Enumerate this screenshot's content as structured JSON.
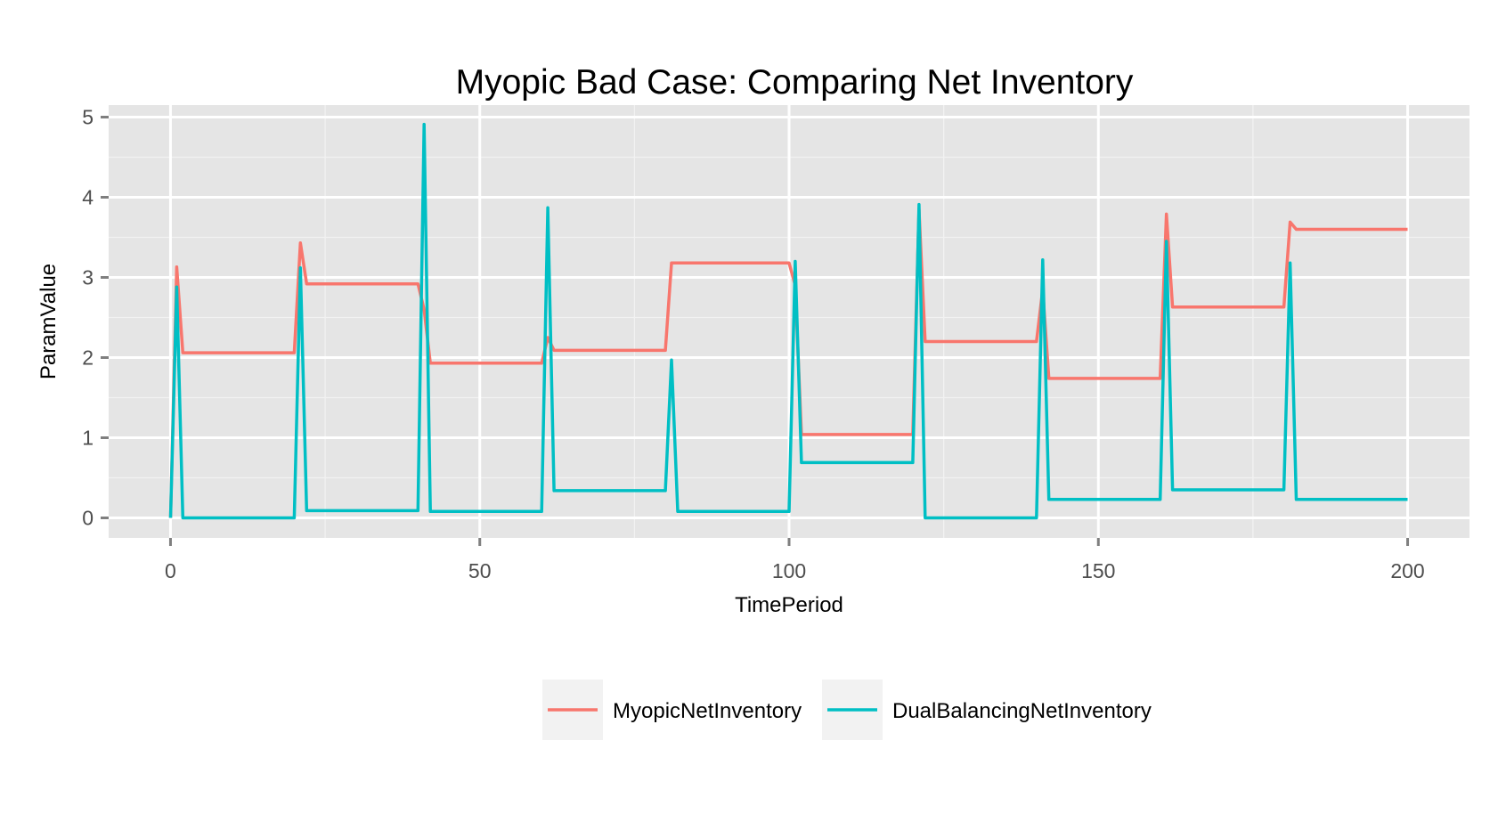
{
  "chart_data": {
    "type": "line",
    "title": "Myopic Bad Case: Comparing Net Inventory",
    "xlabel": "TimePeriod",
    "ylabel": "ParamValue",
    "xlim": [
      -10,
      210
    ],
    "ylim": [
      -0.25,
      5.15
    ],
    "xticks": [
      0,
      50,
      100,
      150,
      200
    ],
    "yticks": [
      0,
      1,
      2,
      3,
      4,
      5
    ],
    "grid": true,
    "legend_position": "bottom",
    "series": [
      {
        "name": "MyopicNetInventory",
        "color": "#F8766D",
        "points": [
          [
            0,
            0
          ],
          [
            1,
            3.13
          ],
          [
            2,
            2.06
          ],
          [
            20,
            2.06
          ],
          [
            21,
            3.43
          ],
          [
            22,
            2.92
          ],
          [
            40,
            2.92
          ],
          [
            41,
            2.6
          ],
          [
            42,
            1.93
          ],
          [
            60,
            1.93
          ],
          [
            61,
            2.25
          ],
          [
            62,
            2.09
          ],
          [
            80,
            2.09
          ],
          [
            81,
            3.18
          ],
          [
            100,
            3.18
          ],
          [
            101,
            2.9
          ],
          [
            102,
            1.04
          ],
          [
            120,
            1.04
          ],
          [
            121,
            3.85
          ],
          [
            122,
            2.2
          ],
          [
            140,
            2.2
          ],
          [
            141,
            2.85
          ],
          [
            142,
            1.74
          ],
          [
            160,
            1.74
          ],
          [
            161,
            3.79
          ],
          [
            162,
            2.63
          ],
          [
            180,
            2.63
          ],
          [
            181,
            3.69
          ],
          [
            182,
            3.6
          ],
          [
            200,
            3.6
          ]
        ]
      },
      {
        "name": "DualBalancingNetInventory",
        "color": "#00BFC4",
        "points": [
          [
            0,
            0
          ],
          [
            1,
            2.88
          ],
          [
            2,
            0
          ],
          [
            20,
            0
          ],
          [
            21,
            3.12
          ],
          [
            22,
            0.09
          ],
          [
            40,
            0.09
          ],
          [
            41,
            4.91
          ],
          [
            42,
            0.08
          ],
          [
            60,
            0.08
          ],
          [
            61,
            3.87
          ],
          [
            62,
            0.34
          ],
          [
            80,
            0.34
          ],
          [
            81,
            1.97
          ],
          [
            82,
            0.08
          ],
          [
            100,
            0.08
          ],
          [
            101,
            3.2
          ],
          [
            102,
            0.69
          ],
          [
            120,
            0.69
          ],
          [
            121,
            3.91
          ],
          [
            122,
            0
          ],
          [
            140,
            0
          ],
          [
            141,
            3.22
          ],
          [
            142,
            0.23
          ],
          [
            160,
            0.23
          ],
          [
            161,
            3.45
          ],
          [
            162,
            0.35
          ],
          [
            180,
            0.35
          ],
          [
            181,
            3.18
          ],
          [
            182,
            0.23
          ],
          [
            200,
            0.23
          ]
        ]
      }
    ]
  }
}
